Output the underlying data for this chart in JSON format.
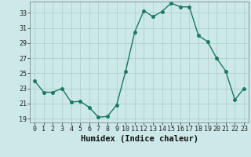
{
  "x": [
    0,
    1,
    2,
    3,
    4,
    5,
    6,
    7,
    8,
    9,
    10,
    11,
    12,
    13,
    14,
    15,
    16,
    17,
    18,
    19,
    20,
    21,
    22,
    23
  ],
  "y": [
    24.0,
    22.5,
    22.5,
    23.0,
    21.2,
    21.3,
    20.5,
    19.2,
    19.3,
    20.8,
    25.3,
    30.5,
    33.3,
    32.5,
    33.2,
    34.3,
    33.8,
    33.8,
    30.0,
    29.2,
    27.0,
    25.3,
    21.5,
    23.0
  ],
  "xlabel": "Humidex (Indice chaleur)",
  "ylabel": "",
  "xlim": [
    -0.5,
    23.5
  ],
  "ylim": [
    18.5,
    34.5
  ],
  "yticks": [
    19,
    21,
    23,
    25,
    27,
    29,
    31,
    33
  ],
  "xticks": [
    0,
    1,
    2,
    3,
    4,
    5,
    6,
    7,
    8,
    9,
    10,
    11,
    12,
    13,
    14,
    15,
    16,
    17,
    18,
    19,
    20,
    21,
    22,
    23
  ],
  "line_color": "#1a7a5e",
  "marker": "o",
  "marker_size": 2.5,
  "bg_color": "#cce8e8",
  "grid_color": "#aacccc",
  "xlabel_fontsize": 7.5,
  "tick_fontsize": 6.0
}
